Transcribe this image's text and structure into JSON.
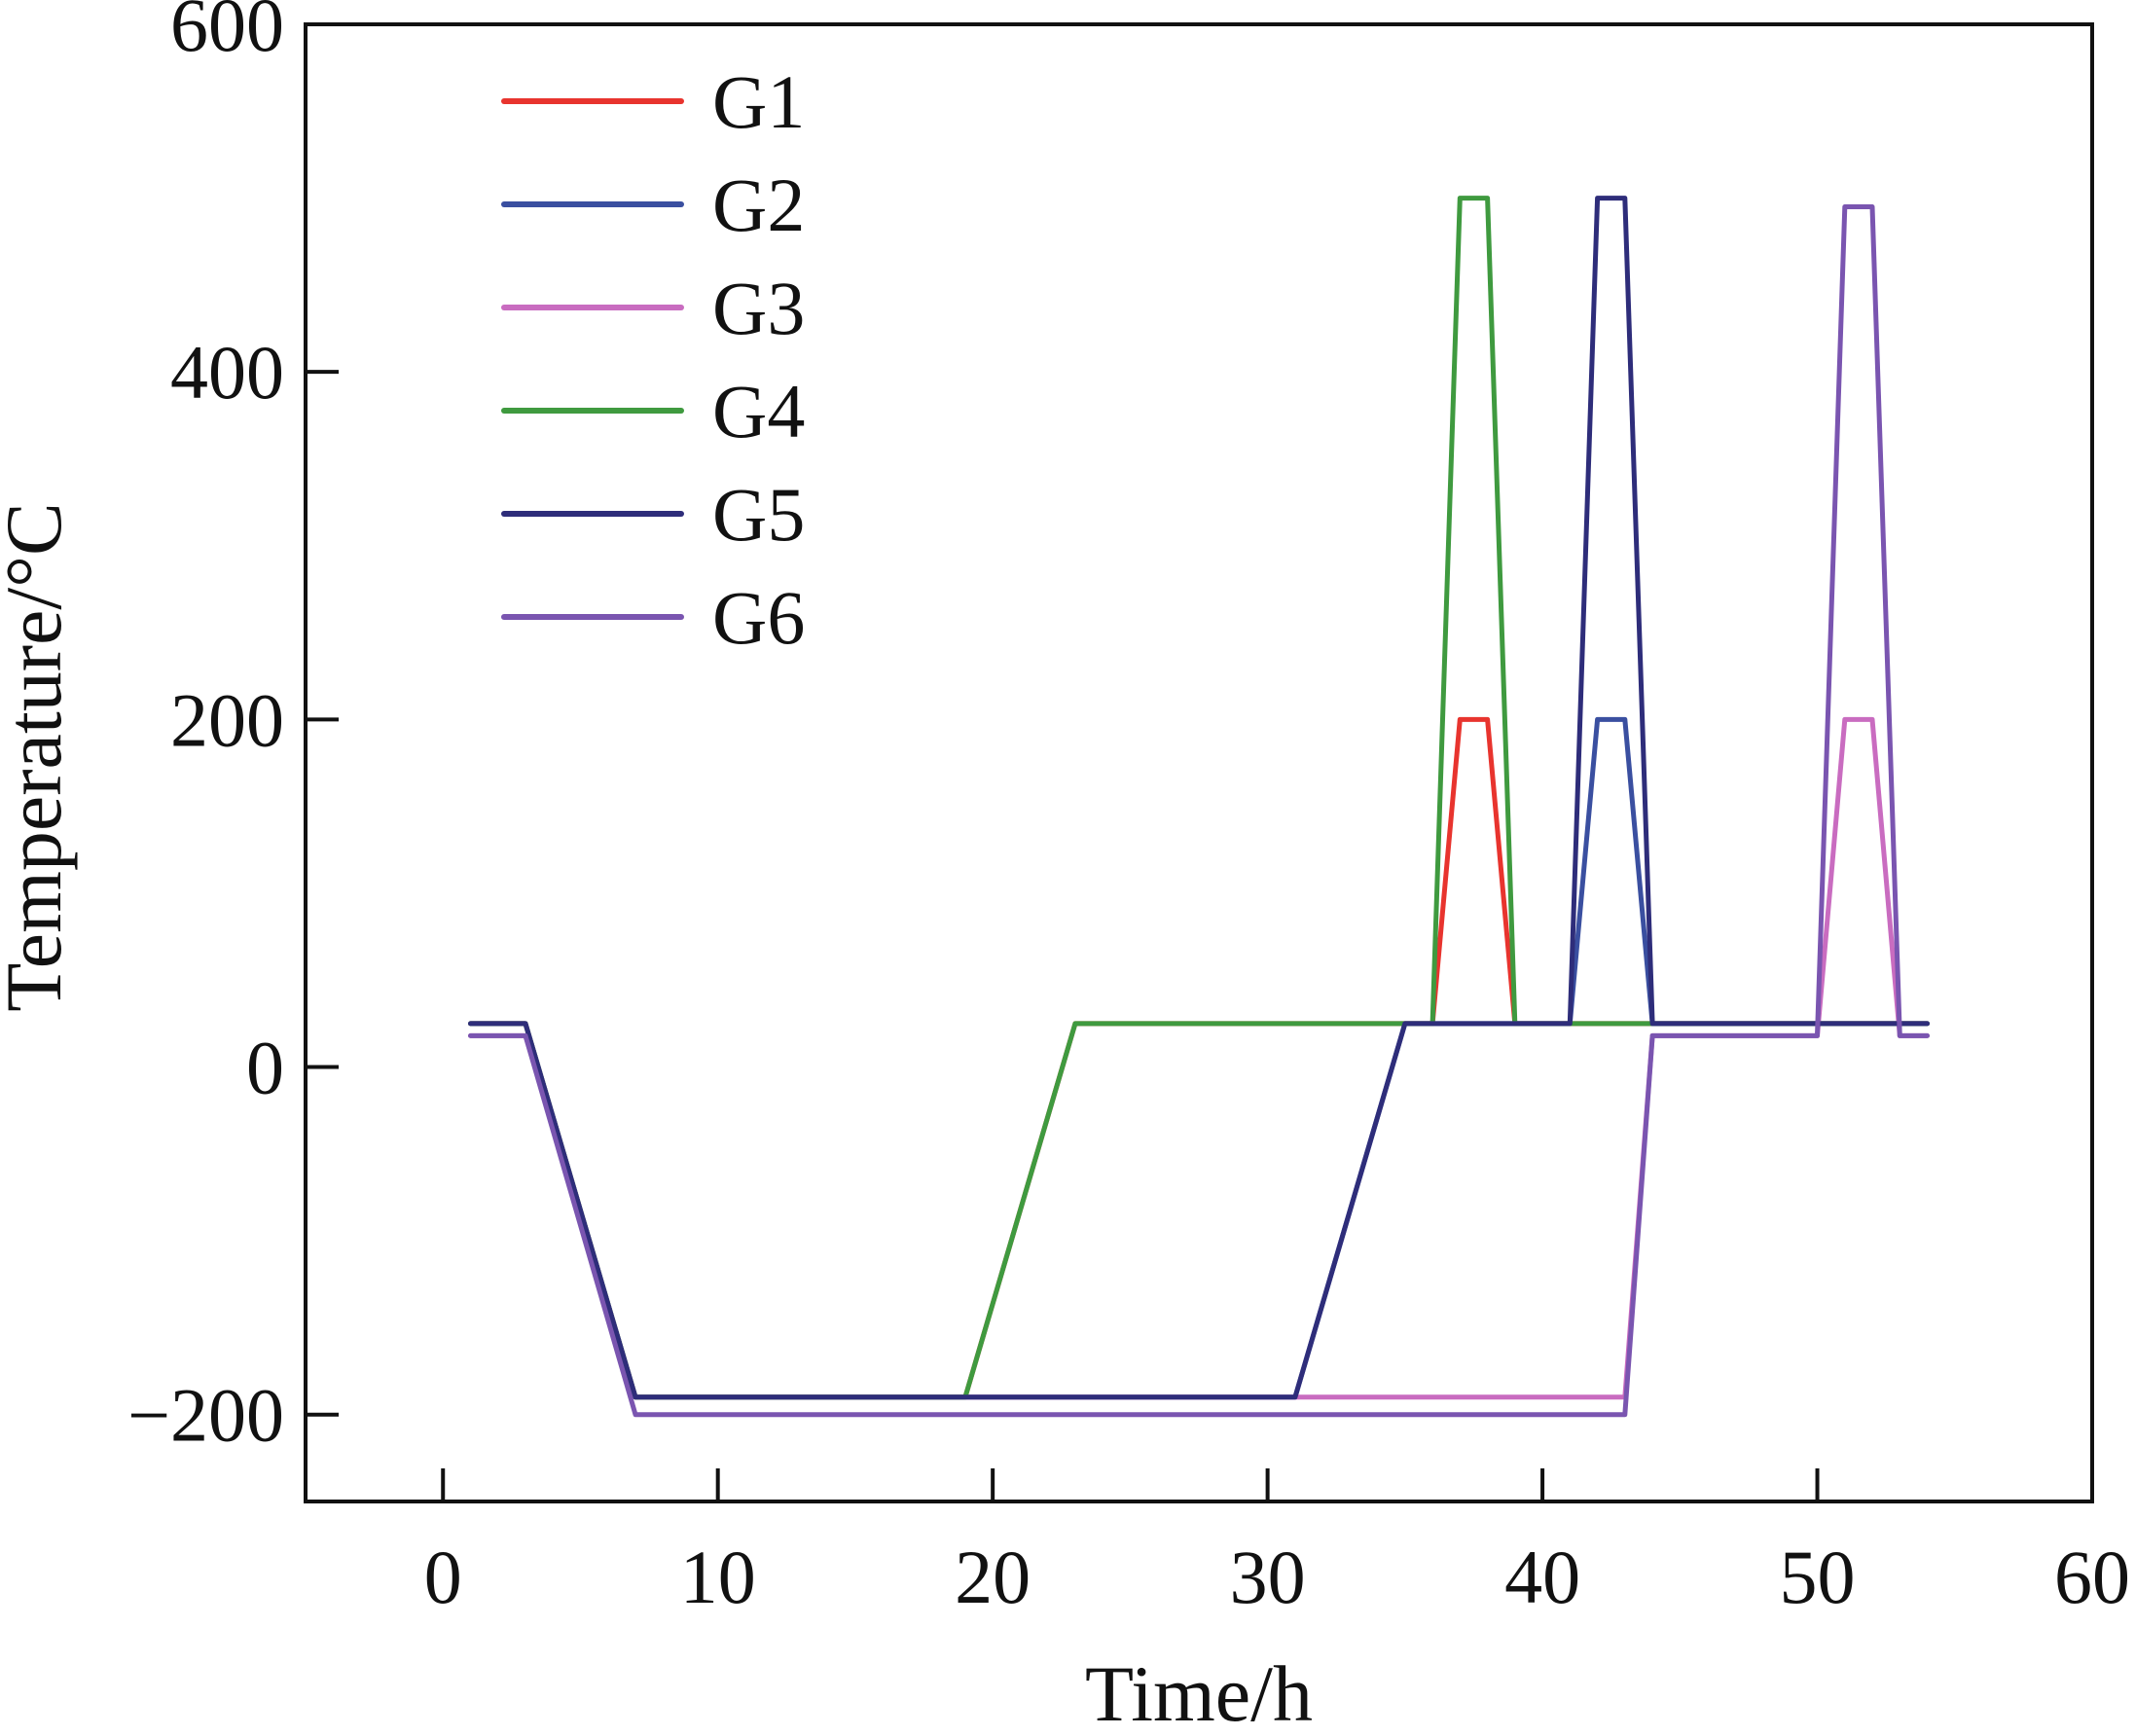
{
  "chart_data": {
    "type": "line",
    "title": "",
    "xlabel": "Time/h",
    "ylabel": "Temperature/°C",
    "xlim": [
      -5,
      60
    ],
    "ylim": [
      -250,
      600
    ],
    "xticks": [
      0,
      10,
      20,
      30,
      40,
      50,
      60
    ],
    "yticks": [
      -200,
      0,
      200,
      400,
      600
    ],
    "xtick_labels": [
      "0",
      "10",
      "20",
      "30",
      "40",
      "50",
      "60"
    ],
    "ytick_labels": [
      "−200",
      "0",
      "200",
      "400",
      "600"
    ],
    "grid": false,
    "legend_position": "top-left",
    "series": [
      {
        "name": "G1",
        "color": "#e8342e",
        "points": [
          [
            1,
            25
          ],
          [
            3,
            25
          ],
          [
            7,
            -190
          ],
          [
            19,
            -190
          ],
          [
            23,
            25
          ],
          [
            36,
            25
          ],
          [
            37,
            200
          ],
          [
            38,
            200
          ],
          [
            39,
            25
          ],
          [
            54,
            25
          ]
        ]
      },
      {
        "name": "G2",
        "color": "#3a4fa0",
        "points": [
          [
            1,
            25
          ],
          [
            3,
            25
          ],
          [
            7,
            -190
          ],
          [
            31,
            -190
          ],
          [
            35,
            25
          ],
          [
            41,
            25
          ],
          [
            42,
            200
          ],
          [
            43,
            200
          ],
          [
            44,
            25
          ],
          [
            54,
            25
          ]
        ]
      },
      {
        "name": "G3",
        "color": "#c96cc0",
        "points": [
          [
            1,
            18
          ],
          [
            3,
            18
          ],
          [
            7,
            -190
          ],
          [
            43,
            -190
          ],
          [
            44,
            18
          ],
          [
            50,
            18
          ],
          [
            51,
            200
          ],
          [
            52,
            200
          ],
          [
            53,
            18
          ],
          [
            54,
            18
          ]
        ]
      },
      {
        "name": "G4",
        "color": "#3f9a3f",
        "points": [
          [
            1,
            25
          ],
          [
            3,
            25
          ],
          [
            7,
            -190
          ],
          [
            19,
            -190
          ],
          [
            23,
            25
          ],
          [
            36,
            25
          ],
          [
            37,
            500
          ],
          [
            38,
            500
          ],
          [
            39,
            25
          ],
          [
            54,
            25
          ]
        ]
      },
      {
        "name": "G5",
        "color": "#2e2d7a",
        "points": [
          [
            1,
            25
          ],
          [
            3,
            25
          ],
          [
            7,
            -190
          ],
          [
            31,
            -190
          ],
          [
            35,
            25
          ],
          [
            41,
            25
          ],
          [
            42,
            500
          ],
          [
            43,
            500
          ],
          [
            44,
            25
          ],
          [
            54,
            25
          ]
        ]
      },
      {
        "name": "G6",
        "color": "#7a55b0",
        "points": [
          [
            1,
            18
          ],
          [
            3,
            18
          ],
          [
            7,
            -200
          ],
          [
            43,
            -200
          ],
          [
            44,
            18
          ],
          [
            50,
            18
          ],
          [
            51,
            495
          ],
          [
            52,
            495
          ],
          [
            53,
            18
          ],
          [
            54,
            18
          ]
        ]
      }
    ]
  }
}
